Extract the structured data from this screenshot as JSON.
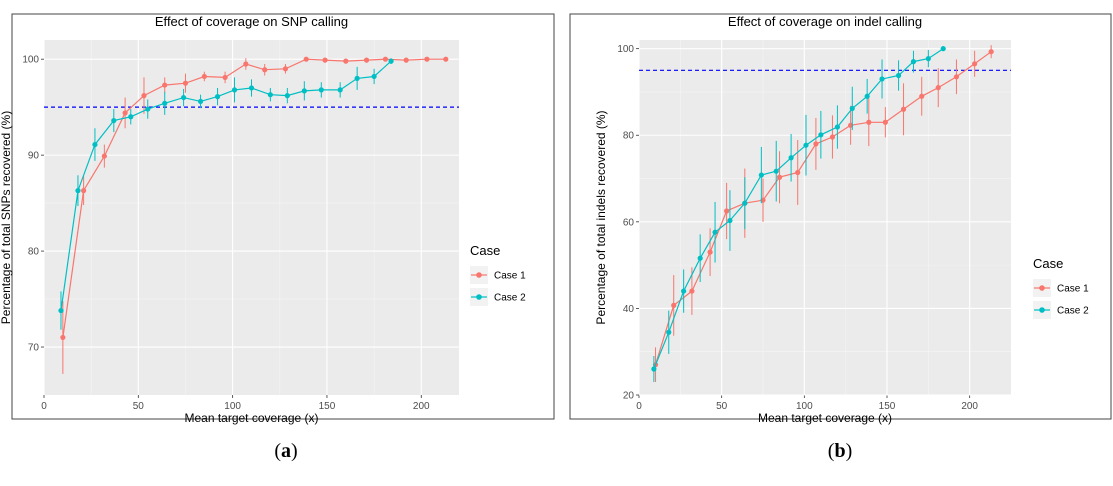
{
  "panels": [
    {
      "caption_letter": "a",
      "chart_data": {
        "type": "line",
        "title": "Effect of coverage on SNP calling",
        "xlabel": "Mean target coverage (x)",
        "ylabel": "Percentage of total SNPs recovered (%)",
        "xlim": [
          0,
          220
        ],
        "ylim": [
          65,
          102
        ],
        "xticks": [
          0,
          50,
          100,
          150,
          200
        ],
        "yticks": [
          70,
          80,
          90,
          100
        ],
        "grid": true,
        "reference_line": {
          "y": 95,
          "color": "#0000ff",
          "style": "dashed"
        },
        "legend": {
          "title": "Case",
          "placement": "right"
        },
        "series": [
          {
            "name": "Case 1",
            "color": "#F8766D",
            "x": [
              10,
              21,
              32,
              43,
              53,
              64,
              75,
              85,
              96,
              107,
              117,
              128,
              139,
              149,
              160,
              171,
              181,
              192,
              203,
              213
            ],
            "y": [
              71.0,
              86.3,
              89.9,
              94.4,
              96.2,
              97.3,
              97.5,
              98.2,
              98.1,
              99.5,
              98.9,
              99.0,
              100.0,
              99.9,
              99.8,
              99.9,
              100.0,
              99.9,
              100.0,
              100.0
            ],
            "err": [
              3.8,
              1.5,
              1.2,
              1.6,
              1.9,
              0.8,
              1.0,
              0.5,
              0.6,
              0.6,
              0.6,
              0.5,
              0.2,
              0.1,
              0.1,
              0.1,
              0.1,
              0.1,
              0.1,
              0.1
            ]
          },
          {
            "name": "Case 2",
            "color": "#00BFC4",
            "x": [
              9,
              18,
              27,
              37,
              46,
              55,
              64,
              74,
              83,
              92,
              101,
              110,
              120,
              129,
              138,
              147,
              157,
              166,
              175,
              184
            ],
            "y": [
              73.8,
              86.3,
              91.1,
              93.6,
              94.0,
              94.8,
              95.4,
              96.0,
              95.6,
              96.1,
              96.8,
              97.0,
              96.3,
              96.2,
              96.7,
              96.8,
              96.8,
              98.0,
              98.2,
              99.8
            ],
            "err": [
              2.0,
              1.6,
              1.7,
              1.2,
              0.8,
              1.0,
              1.2,
              0.9,
              0.7,
              0.9,
              1.3,
              0.9,
              0.7,
              0.8,
              1.0,
              0.8,
              0.8,
              1.2,
              0.8,
              0.3
            ]
          }
        ]
      }
    },
    {
      "caption_letter": "b",
      "chart_data": {
        "type": "line",
        "title": "Effect of coverage on indel calling",
        "xlabel": "Mean target coverage (x)",
        "ylabel": "Percentage of total indels recovered (%)",
        "xlim": [
          0,
          225
        ],
        "ylim": [
          20,
          102
        ],
        "xticks": [
          0,
          50,
          100,
          150,
          200
        ],
        "yticks": [
          20,
          40,
          60,
          80,
          100
        ],
        "grid": true,
        "reference_line": {
          "y": 95,
          "color": "#0000ff",
          "style": "dashed"
        },
        "legend": {
          "title": "Case",
          "placement": "right"
        },
        "series": [
          {
            "name": "Case 1",
            "color": "#F8766D",
            "x": [
              10,
              21,
              32,
              43,
              53,
              64,
              75,
              85,
              96,
              107,
              117,
              128,
              139,
              149,
              160,
              171,
              181,
              192,
              203,
              213
            ],
            "y": [
              27.0,
              40.7,
              44.0,
              53.0,
              62.5,
              64.3,
              65.0,
              70.3,
              71.4,
              78.0,
              79.6,
              82.3,
              83.0,
              83.0,
              86.0,
              89.0,
              91.0,
              93.5,
              96.5,
              99.3
            ],
            "err": [
              4.0,
              7.0,
              5.5,
              5.5,
              6.5,
              8.0,
              5.0,
              6.0,
              7.5,
              6.0,
              5.0,
              4.5,
              5.5,
              3.5,
              6.0,
              4.5,
              4.5,
              4.0,
              3.0,
              1.5
            ]
          },
          {
            "name": "Case 2",
            "color": "#00BFC4",
            "x": [
              9,
              18,
              27,
              37,
              46,
              55,
              64,
              74,
              83,
              92,
              101,
              110,
              120,
              129,
              138,
              147,
              157,
              166,
              175,
              184
            ],
            "y": [
              26.0,
              34.5,
              44.0,
              51.6,
              57.6,
              60.3,
              64.3,
              70.8,
              71.7,
              74.8,
              77.7,
              80.1,
              81.9,
              86.2,
              89.0,
              93.0,
              93.8,
              97.0,
              97.7,
              100.0
            ],
            "err": [
              3.0,
              5.0,
              5.0,
              5.5,
              7.0,
              7.0,
              6.0,
              6.5,
              7.0,
              5.5,
              7.0,
              5.5,
              5.0,
              5.0,
              4.0,
              4.5,
              3.5,
              2.5,
              2.0,
              0.5
            ]
          }
        ]
      }
    }
  ]
}
